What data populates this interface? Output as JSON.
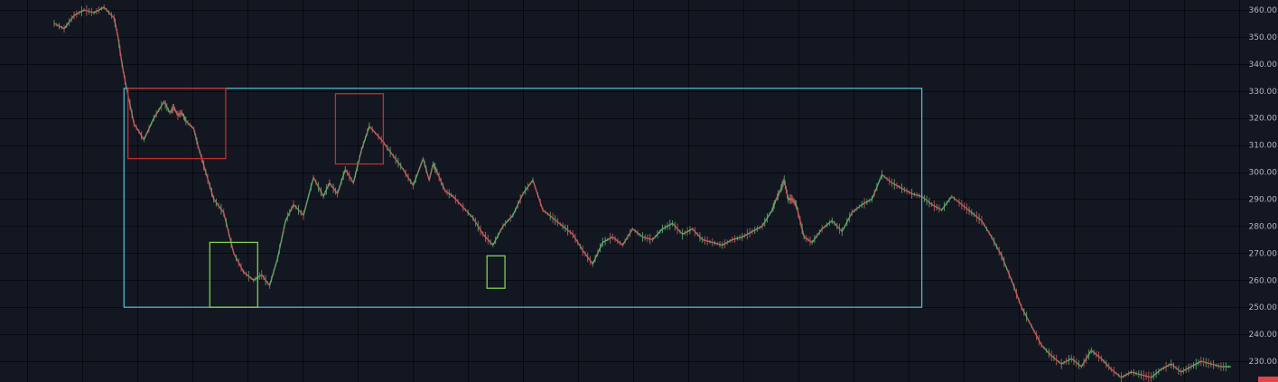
{
  "chart_data": {
    "type": "line",
    "title": "",
    "xlabel": "",
    "ylabel": "",
    "ylim": [
      223,
      362
    ],
    "y_ticks": [
      230,
      240,
      250,
      260,
      270,
      280,
      290,
      300,
      310,
      320,
      330,
      340,
      350,
      360
    ],
    "y_tick_labels": [
      "230.00",
      "240.00",
      "250.00",
      "260.00",
      "270.00",
      "280.00",
      "290.00",
      "300.00",
      "310.00",
      "320.00",
      "330.00",
      "340.00",
      "350.00",
      "360.00"
    ],
    "grid": true,
    "legend": "none",
    "series": [
      {
        "x": [
          0,
          5,
          10,
          15,
          20,
          25,
          30,
          32,
          34,
          36,
          40,
          45,
          50,
          55,
          58,
          60,
          62,
          64,
          66,
          70,
          72,
          76,
          80,
          85,
          90,
          95,
          100,
          104,
          108,
          112,
          116,
          120,
          125,
          130,
          135,
          138,
          142,
          146,
          150,
          154,
          158,
          164,
          170,
          175,
          180,
          185,
          188,
          190,
          192,
          196,
          200,
          205,
          210,
          215,
          220,
          225,
          230,
          235,
          240,
          245,
          250,
          255,
          260,
          265,
          270,
          275,
          280,
          285,
          290,
          295,
          300,
          305,
          310,
          315,
          320,
          325,
          330,
          335,
          340,
          345,
          350,
          355,
          360,
          362,
          364,
          366,
          368,
          370,
          372,
          374,
          376,
          380,
          385,
          390,
          395,
          400,
          405,
          410,
          415,
          420,
          425,
          430,
          435,
          440,
          445,
          450,
          455,
          460,
          465,
          470,
          475,
          480,
          485,
          490,
          495,
          500,
          505,
          510,
          515,
          520,
          525,
          530,
          535,
          540,
          545,
          550,
          555,
          560,
          565,
          570,
          575,
          580,
          585,
          590
        ],
        "values": [
          355,
          353,
          358,
          360,
          359,
          361,
          357,
          350,
          340,
          332,
          318,
          312,
          320,
          326,
          322,
          324,
          321,
          322,
          319,
          316,
          310,
          300,
          290,
          285,
          270,
          263,
          260,
          262,
          258,
          268,
          282,
          288,
          284,
          298,
          291,
          296,
          292,
          301,
          296,
          308,
          317,
          312,
          306,
          301,
          295,
          305,
          297,
          303,
          300,
          293,
          291,
          287,
          283,
          277,
          273,
          280,
          284,
          292,
          297,
          286,
          283,
          280,
          277,
          271,
          266,
          274,
          276,
          273,
          279,
          276,
          275,
          279,
          281,
          277,
          279,
          275,
          274,
          273,
          275,
          276,
          278,
          280,
          286,
          290,
          293,
          297,
          290,
          290,
          288,
          282,
          276,
          274,
          279,
          282,
          278,
          285,
          288,
          290,
          299,
          296,
          294,
          292,
          291,
          288,
          286,
          291,
          288,
          285,
          282,
          276,
          269,
          260,
          250,
          243,
          236,
          232,
          229,
          231,
          228,
          234,
          231,
          227,
          224,
          226,
          225,
          224,
          227,
          229,
          226,
          228,
          230,
          229,
          228,
          228
        ]
      }
    ],
    "annotations": [
      {
        "type": "rectangle",
        "color": "#4fb7c9",
        "x": [
          35,
          435
        ],
        "y": [
          250,
          331
        ]
      },
      {
        "type": "rectangle",
        "color": "#c0302b",
        "x": [
          37,
          86
        ],
        "y": [
          305,
          331
        ]
      },
      {
        "type": "rectangle",
        "color": "#c0302b",
        "x": [
          141,
          165
        ],
        "y": [
          303,
          329
        ]
      },
      {
        "type": "rectangle",
        "color": "#7fd04b",
        "x": [
          78,
          102
        ],
        "y": [
          250,
          274
        ]
      },
      {
        "type": "rectangle",
        "color": "#7fd04b",
        "x": [
          217,
          226
        ],
        "y": [
          257,
          269
        ]
      }
    ],
    "colors": {
      "background": "#131722",
      "grid": "#222632",
      "up": "#5fa86a",
      "down": "#c15a5a",
      "price_tag": "#e04646"
    }
  }
}
